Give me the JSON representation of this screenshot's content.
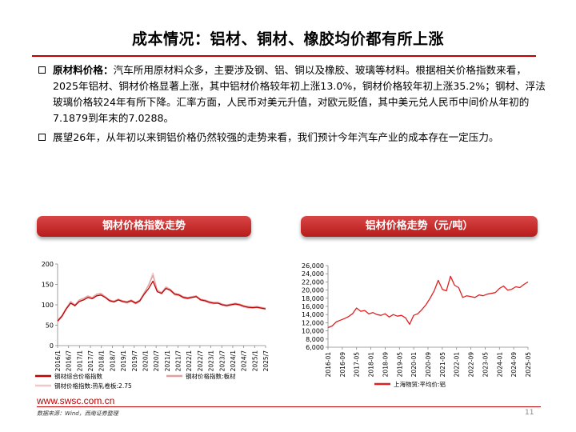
{
  "title": "成本情况：铝材、铜材、橡胶均价都有所上涨",
  "bullets": [
    {
      "lead": "原材料价格：",
      "text": "汽车所用原材料众多，主要涉及钢、铝、铜以及橡胶、玻璃等材料。根据相关价格指数来看，2025年铝材、铜材价格显著上涨，其中铝材价格较年初上涨13.0%，铜材价格较年初上涨35.2%；钢材、浮法玻璃价格较24年有所下降。汇率方面，人民币对美元升值，对欧元贬值，其中美元兑人民币中间价从年初的7.1879到年末的7.0288。"
    },
    {
      "lead": "",
      "text": "展望26年，从年初以来铜铝价格仍然较强的走势来看，我们预计今年汽车产业的成本存在一定压力。"
    }
  ],
  "panels": {
    "left_title": "钢材价格指数走势",
    "right_title": "铝材价格走势（元/吨）"
  },
  "chart_data": [
    {
      "type": "line",
      "title": "钢材价格指数走势",
      "x_tick_labels": [
        "2016/1",
        "2016/7",
        "2017/1",
        "2017/7",
        "2018/1",
        "2018/7",
        "2019/1",
        "2019/7",
        "2020/1",
        "2020/7",
        "2021/1",
        "2021/7",
        "2022/1",
        "2022/7",
        "2023/1",
        "2023/7",
        "2024/1",
        "2024/7",
        "2025/1",
        "2025/7"
      ],
      "ylim": [
        0,
        200
      ],
      "y_ticks": [
        0,
        50,
        100,
        150,
        200
      ],
      "series": [
        {
          "name": "钢材综合价格指数",
          "color": "#c00000",
          "values": [
            60,
            72,
            90,
            104,
            98,
            108,
            112,
            118,
            115,
            122,
            124,
            118,
            110,
            107,
            112,
            108,
            106,
            110,
            104,
            110,
            126,
            140,
            158,
            132,
            128,
            140,
            136,
            126,
            124,
            118,
            116,
            118,
            120,
            112,
            110,
            106,
            104,
            104,
            100,
            98,
            100,
            102,
            100,
            96,
            94,
            93,
            94,
            92,
            90
          ]
        },
        {
          "name": "钢材价格指数:板材",
          "color": "#e0a0a0",
          "values": [
            62,
            74,
            92,
            108,
            100,
            112,
            116,
            122,
            118,
            126,
            128,
            120,
            112,
            109,
            114,
            110,
            108,
            112,
            106,
            112,
            130,
            148,
            172,
            136,
            130,
            144,
            138,
            128,
            126,
            120,
            118,
            120,
            122,
            114,
            112,
            108,
            106,
            106,
            102,
            100,
            102,
            104,
            102,
            98,
            96,
            95,
            96,
            94,
            92
          ]
        },
        {
          "name": "钢材价格指数:热轧卷板:2.75",
          "color": "#f0c8c8",
          "values": [
            58,
            70,
            88,
            106,
            96,
            110,
            114,
            120,
            116,
            124,
            126,
            118,
            108,
            106,
            112,
            106,
            104,
            108,
            102,
            108,
            128,
            150,
            178,
            134,
            126,
            142,
            134,
            124,
            122,
            116,
            114,
            118,
            120,
            110,
            108,
            104,
            102,
            104,
            98,
            96,
            98,
            100,
            98,
            94,
            92,
            92,
            93,
            90,
            89
          ]
        }
      ],
      "legend": [
        "钢材综合价格指数",
        "钢材价格指数:板材",
        "钢材价格指数:热轧卷板:2.75"
      ]
    },
    {
      "type": "line",
      "title": "铝材价格走势（元/吨）",
      "x_tick_labels": [
        "2016-01",
        "2016-09",
        "2017-05",
        "2018-01",
        "2018-09",
        "2019-05",
        "2020-01",
        "2020-09",
        "2021-05",
        "2022-01",
        "2022-09",
        "2023-05",
        "2024-01",
        "2024-09",
        "2025-05"
      ],
      "ylim": [
        6000,
        26000
      ],
      "y_ticks": [
        6000,
        8000,
        10000,
        12000,
        14000,
        16000,
        18000,
        20000,
        22000,
        24000,
        26000
      ],
      "series": [
        {
          "name": "上海物贸:平均价:铝",
          "color": "#e02020",
          "values": [
            10800,
            11200,
            12200,
            12600,
            13000,
            13500,
            14200,
            15600,
            14800,
            15000,
            14200,
            14500,
            14000,
            13800,
            14200,
            13400,
            14000,
            13600,
            13800,
            13200,
            11600,
            13800,
            14200,
            15200,
            16400,
            18000,
            19800,
            22400,
            20200,
            19800,
            23400,
            21200,
            20600,
            18200,
            18600,
            18400,
            18200,
            18800,
            18600,
            19000,
            19200,
            19400,
            20400,
            21000,
            20000,
            20200,
            20800,
            20600,
            21400,
            22000
          ]
        }
      ],
      "legend": [
        "上海物贸:平均价:铝"
      ]
    }
  ],
  "footer": {
    "url": "www.swsc.com.cn",
    "source": "数据来源：Wind，西南证券整理",
    "page": "11"
  }
}
